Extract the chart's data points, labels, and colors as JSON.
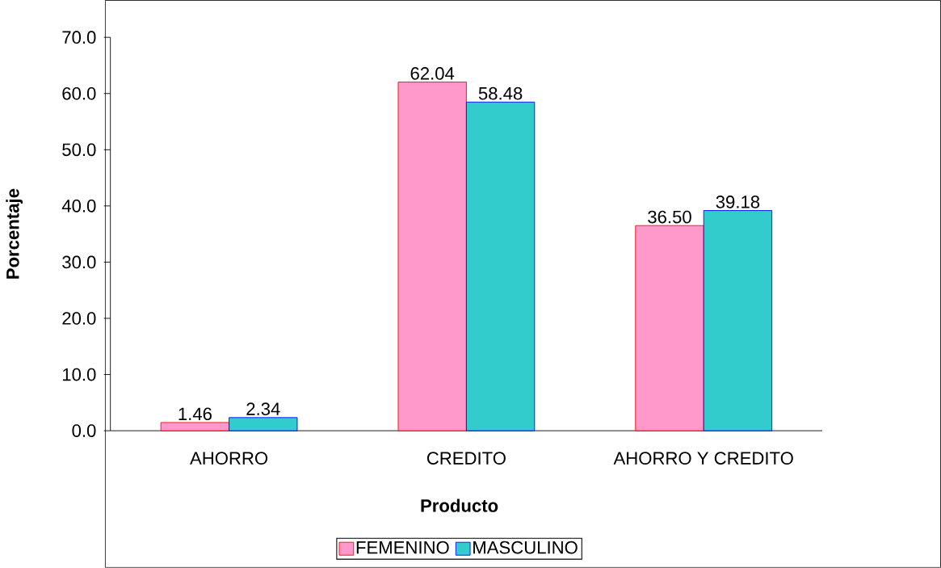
{
  "chart_data": {
    "type": "bar",
    "xlabel": "Producto",
    "ylabel": "Porcentaje",
    "categories": [
      "AHORRO",
      "CREDITO",
      "AHORRO Y CREDITO"
    ],
    "series": [
      {
        "name": "FEMENINO",
        "color": "#ff99cc",
        "values": [
          1.46,
          62.04,
          36.5
        ],
        "value_labels": [
          "1.46",
          "62.04",
          "36.50"
        ]
      },
      {
        "name": "MASCULINO",
        "color": "#33cccc",
        "values": [
          2.34,
          58.48,
          39.18
        ],
        "value_labels": [
          "2.34",
          "58.48",
          "39.18"
        ]
      }
    ],
    "ylim": [
      0,
      70
    ],
    "yticks": [
      {
        "value": 0,
        "label": "0.0"
      },
      {
        "value": 10,
        "label": "10.0"
      },
      {
        "value": 20,
        "label": "20.0"
      },
      {
        "value": 30,
        "label": "30.0"
      },
      {
        "value": 40,
        "label": "40.0"
      },
      {
        "value": 50,
        "label": "50.0"
      },
      {
        "value": 60,
        "label": "60.0"
      },
      {
        "value": 70,
        "label": "70.0"
      }
    ],
    "grid": false,
    "legend": "bottom"
  }
}
